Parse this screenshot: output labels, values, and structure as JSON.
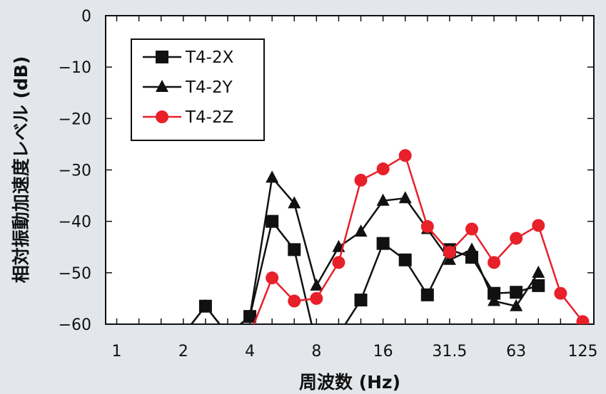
{
  "chart_data": {
    "type": "line",
    "xlabel": "周波数 (Hz)",
    "ylabel": "相対振動加速度レベル (dB)",
    "x_categories": [
      "1",
      "1.25",
      "1.6",
      "2",
      "2.5",
      "3.15",
      "4",
      "5",
      "6.3",
      "8",
      "10",
      "12.5",
      "16",
      "20",
      "25",
      "31.5",
      "40",
      "50",
      "63",
      "80",
      "100",
      "125"
    ],
    "x_tick_labels": [
      "1",
      "2",
      "4",
      "8",
      "16",
      "31.5",
      "63",
      "125"
    ],
    "ylim": [
      -60,
      0
    ],
    "y_ticks": [
      0,
      -10,
      -20,
      -30,
      -40,
      -50,
      -60
    ],
    "y_tick_labels": [
      "0",
      "−10",
      "−20",
      "−30",
      "−40",
      "−50",
      "−60"
    ],
    "legend_position": "top-left",
    "series": [
      {
        "name": "T4-2X",
        "marker": "square",
        "color": "#111111",
        "values": [
          null,
          null,
          null,
          -62,
          -56.5,
          -62,
          -58.5,
          -40,
          -45.5,
          -64,
          -62,
          -55.3,
          -44.3,
          -47.5,
          -54.3,
          -45.5,
          -47,
          -54,
          -53.8,
          -52.5,
          null,
          null
        ]
      },
      {
        "name": "T4-2Y",
        "marker": "triangle",
        "color": "#111111",
        "values": [
          null,
          null,
          null,
          -62,
          -56.5,
          -62,
          -58.5,
          -31.5,
          -36.5,
          -52.5,
          -45,
          -42,
          -36,
          -35.5,
          -41.5,
          -47.5,
          -45.5,
          -55.5,
          -56.5,
          -50,
          null,
          null
        ]
      },
      {
        "name": "T4-2Z",
        "marker": "circle",
        "color": "#e8202a",
        "values": [
          null,
          null,
          null,
          null,
          null,
          null,
          -62,
          -51,
          -55.5,
          -55,
          -48,
          -32,
          -29.8,
          -27.2,
          -41,
          -46,
          -41.5,
          -48,
          -43.3,
          -40.8,
          -54,
          -59.5
        ]
      }
    ]
  }
}
